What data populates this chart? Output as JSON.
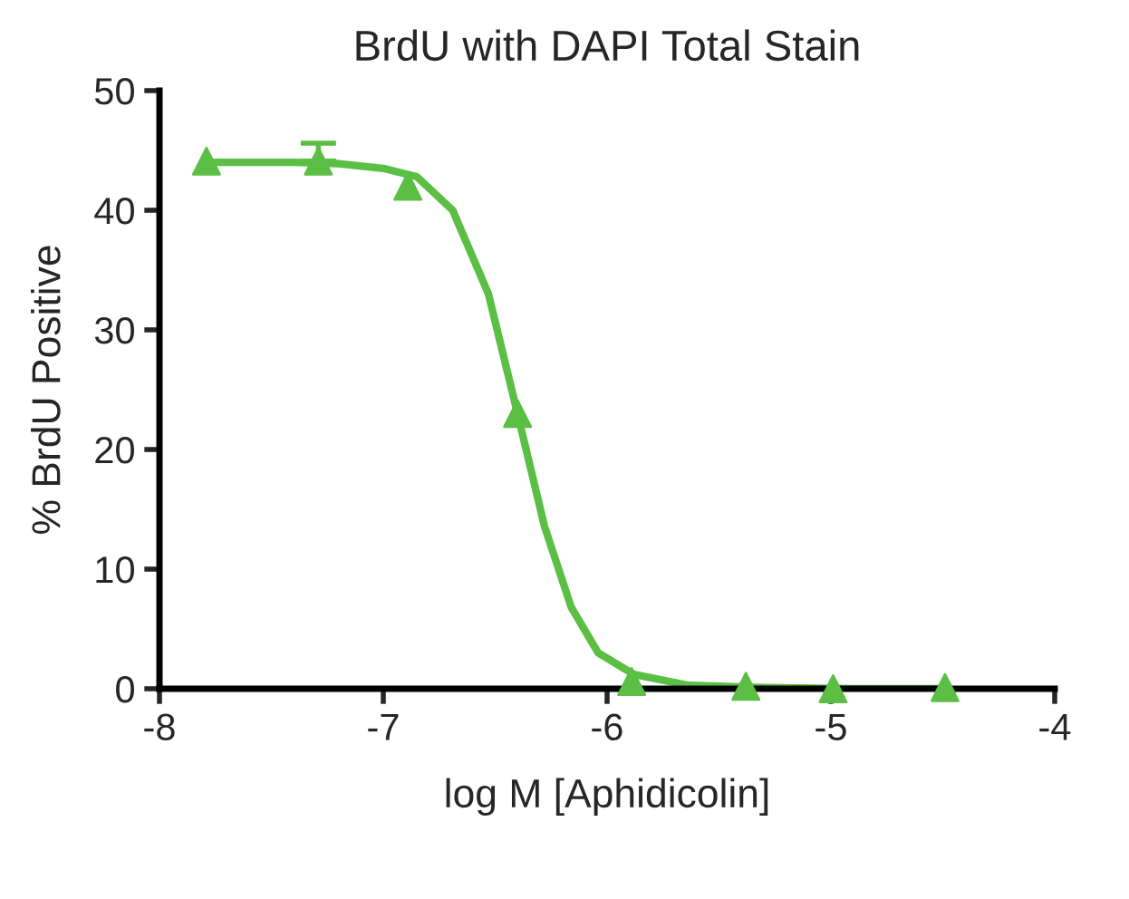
{
  "chart_data": {
    "type": "scatter",
    "title": "BrdU with DAPI Total Stain",
    "xlabel": "log M [Aphidicolin]",
    "ylabel": "% BrdU Positive",
    "xlim": [
      -8,
      -4
    ],
    "xticks": [
      -8,
      -7,
      -6,
      -5,
      -4
    ],
    "ylim": [
      0,
      50
    ],
    "yticks": [
      0,
      10,
      20,
      30,
      40,
      50
    ],
    "grid": false,
    "legend": false,
    "series": [
      {
        "marker": "triangle",
        "color": "#5cbf45",
        "x": [
          -7.79,
          -7.29,
          -6.89,
          -6.4,
          -5.89,
          -5.38,
          -4.99,
          -4.49
        ],
        "values": [
          44.1,
          44.1,
          42,
          23,
          0.6,
          0.2,
          0,
          0.1
        ],
        "errors": [
          null,
          [
            44.1,
            45.6
          ],
          null,
          null,
          null,
          null,
          null,
          null
        ]
      },
      {
        "type": "line",
        "marker": "none",
        "color": "#5cbf45",
        "x": [
          -7.79,
          -7.4,
          -7.2,
          -7.0,
          -6.85,
          -6.69,
          -6.53,
          -6.4,
          -6.28,
          -6.16,
          -6.04,
          -5.88,
          -5.64,
          -5.3,
          -4.9,
          -4.49
        ],
        "values": [
          44,
          44,
          43.9,
          43.5,
          42.8,
          40,
          33,
          23,
          13.6,
          6.8,
          3,
          1.2,
          0.3,
          0.1,
          0,
          0
        ]
      }
    ]
  }
}
